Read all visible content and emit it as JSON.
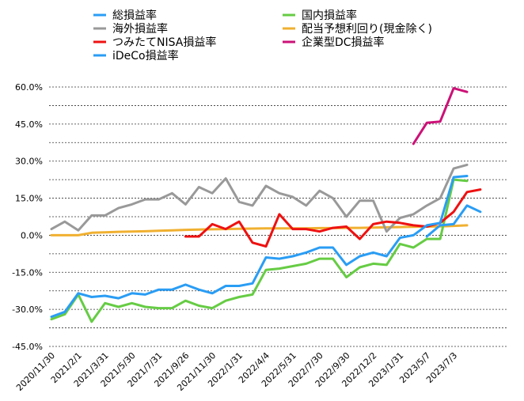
{
  "chart_data": {
    "type": "line",
    "ylim": [
      -45,
      60
    ],
    "yticks": [
      "60.0%",
      "45.0%",
      "30.0%",
      "15.0%",
      "0.0%",
      "-15.0%",
      "-30.0%",
      "-45.0%"
    ],
    "ytick_values": [
      60,
      45,
      30,
      15,
      0,
      -15,
      -30,
      -45
    ],
    "x_labels": [
      "2020/11/30",
      "2021/2/1",
      "2021/3/31",
      "2021/5/30",
      "2021/7/31",
      "2021/9/26",
      "2021/11/30",
      "2022/1/31",
      "2022/4/4",
      "2022/5/31",
      "2022/7/30",
      "2022/9/30",
      "2022/12/2",
      "2023/1/31",
      "2023/5/7",
      "2023/7/3"
    ],
    "grid": "horizontal dashed",
    "legend_position": "top",
    "series": [
      {
        "name": "総損益率",
        "color": "#2a9df4",
        "start": 0,
        "values": [
          -33,
          -31,
          -23.5,
          -25,
          -24.5,
          -25.5,
          -23.5,
          -24,
          -22,
          -22,
          -20,
          -22,
          -23.5,
          -20.5,
          -20.5,
          -19.5,
          -9,
          -9.5,
          -8.5,
          -7,
          -5,
          -5,
          -12,
          -8.5,
          -7,
          -8.5,
          -1,
          0,
          4,
          5,
          23.5,
          24
        ]
      },
      {
        "name": "海外損益率",
        "color": "#999999",
        "start": 0,
        "values": [
          2.5,
          5.5,
          2,
          8,
          8,
          11,
          12.5,
          14.5,
          14.5,
          17,
          12.5,
          19.5,
          17,
          23,
          13.5,
          12,
          20,
          17,
          15.5,
          12,
          18,
          15,
          7.5,
          14,
          14,
          1.5,
          7,
          8.5,
          12,
          15,
          27,
          28.5
        ]
      },
      {
        "name": "つみたてNISA損益率",
        "color": "#ee1111",
        "start": 10,
        "values": [
          -0.5,
          -0.5,
          4.5,
          2.5,
          5.5,
          -3,
          -4.5,
          8.5,
          2.5,
          2.5,
          1.5,
          3,
          3.5,
          -1.5,
          4.5,
          5.5,
          5,
          4,
          3.5,
          5,
          9.5,
          17.5,
          18.5
        ]
      },
      {
        "name": "iDeCo損益率",
        "color": "#2a9df4",
        "start": 28,
        "values": [
          -0.5,
          4,
          4.5,
          12,
          9.5
        ]
      },
      {
        "name": "国内損益率",
        "color": "#66cc44",
        "start": 0,
        "values": [
          -34,
          -32,
          -24,
          -35,
          -27.5,
          -29,
          -27.5,
          -29,
          -29.5,
          -29.5,
          -26.5,
          -28.5,
          -29.5,
          -26.5,
          -25,
          -24,
          -14,
          -13.5,
          -12.5,
          -11.5,
          -9.5,
          -9.5,
          -17,
          -13,
          -11.5,
          -12,
          -3.5,
          -5,
          -1.5,
          -1.5,
          22.5,
          22
        ]
      },
      {
        "name": "配当予想利回り(現金除く)",
        "color": "#f0b030",
        "start": 0,
        "values": [
          0,
          0,
          0,
          1,
          1.2,
          1.4,
          1.5,
          1.6,
          1.8,
          2,
          2.2,
          2.3,
          2.4,
          2.5,
          2.6,
          2.7,
          2.8,
          2.8,
          2.8,
          2.8,
          2.9,
          2.9,
          3,
          3,
          3.1,
          3.2,
          3.3,
          3.4,
          3.5,
          3.6,
          3.8,
          4
        ]
      },
      {
        "name": "企業型DC損益率",
        "color": "#cc1177",
        "start": 27,
        "values": [
          37,
          45.5,
          46,
          59.5,
          58
        ]
      }
    ]
  }
}
